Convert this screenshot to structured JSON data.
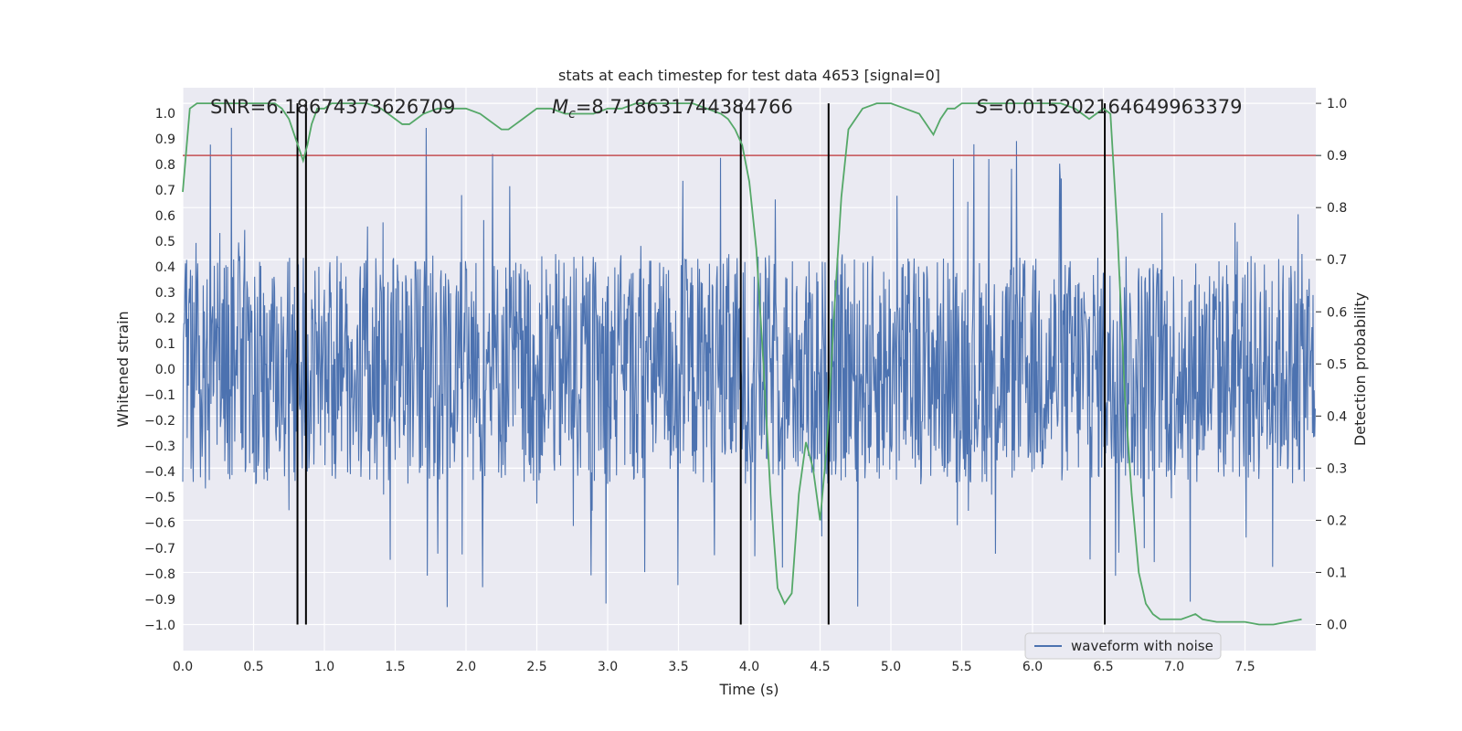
{
  "chart_data": {
    "type": "line",
    "title": "stats at each timestep for test data 4653 [signal=0]",
    "xlabel": "Time (s)",
    "ylabel_left": "Whitened strain",
    "ylabel_right": "Detection probability",
    "xlim": [
      0,
      8
    ],
    "ylim_left": [
      -1.1,
      1.1
    ],
    "ylim_right": [
      -0.05,
      1.03
    ],
    "x_ticks": [
      "0.0",
      "0.5",
      "1.0",
      "1.5",
      "2.0",
      "2.5",
      "3.0",
      "3.5",
      "4.0",
      "4.5",
      "5.0",
      "5.5",
      "6.0",
      "6.5",
      "7.0",
      "7.5"
    ],
    "y_ticks_left": [
      "1.0",
      "0.9",
      "0.8",
      "0.7",
      "0.6",
      "0.5",
      "0.4",
      "0.3",
      "0.2",
      "0.1",
      "0.0",
      "-0.1",
      "-0.2",
      "-0.3",
      "-0.4",
      "-0.5",
      "-0.6",
      "-0.7",
      "-0.8",
      "-0.9",
      "-1.0"
    ],
    "y_ticks_right": [
      "1.0",
      "0.9",
      "0.8",
      "0.7",
      "0.6",
      "0.5",
      "0.4",
      "0.3",
      "0.2",
      "0.1",
      "0.0"
    ],
    "stat_snr": "SNR=6.18674373626709",
    "stat_mc_symbol": "M",
    "stat_mc_sub": "c",
    "stat_mc_value": "=8.718631744384766",
    "stat_s_symbol": "S",
    "stat_s_value": "=0.015202164649963379",
    "legend": "waveform with noise",
    "threshold_probability": 0.9,
    "vertical_lines": [
      0.81,
      0.87,
      3.94,
      4.56,
      6.51
    ],
    "waveform": {
      "name": "waveform with noise",
      "sample_count": 2048,
      "noise_range": [
        -1.0,
        1.0
      ],
      "typical_amplitude": 0.45
    },
    "probability": {
      "x": [
        0.0,
        0.05,
        0.1,
        0.2,
        0.3,
        0.4,
        0.5,
        0.6,
        0.65,
        0.7,
        0.75,
        0.8,
        0.85,
        0.88,
        0.91,
        0.95,
        1.0,
        1.05,
        1.1,
        1.2,
        1.3,
        1.4,
        1.45,
        1.5,
        1.55,
        1.6,
        1.65,
        1.7,
        1.8,
        1.9,
        2.0,
        2.1,
        2.15,
        2.2,
        2.25,
        2.3,
        2.35,
        2.4,
        2.45,
        2.5,
        2.6,
        2.7,
        2.8,
        2.9,
        3.0,
        3.1,
        3.2,
        3.3,
        3.4,
        3.5,
        3.6,
        3.7,
        3.8,
        3.85,
        3.9,
        3.95,
        4.0,
        4.05,
        4.1,
        4.15,
        4.2,
        4.25,
        4.3,
        4.35,
        4.4,
        4.45,
        4.5,
        4.55,
        4.6,
        4.65,
        4.7,
        4.8,
        4.9,
        5.0,
        5.1,
        5.2,
        5.25,
        5.3,
        5.35,
        5.4,
        5.45,
        5.5,
        5.55,
        5.6,
        5.7,
        5.8,
        5.9,
        6.0,
        6.1,
        6.2,
        6.3,
        6.35,
        6.4,
        6.45,
        6.5,
        6.55,
        6.6,
        6.65,
        6.7,
        6.75,
        6.8,
        6.85,
        6.9,
        6.95,
        7.0,
        7.05,
        7.1,
        7.15,
        7.2,
        7.3,
        7.4,
        7.5,
        7.6,
        7.7,
        7.8,
        7.9
      ],
      "y": [
        0.83,
        0.99,
        1.0,
        1.0,
        1.0,
        1.0,
        1.0,
        1.0,
        1.0,
        0.99,
        0.97,
        0.93,
        0.89,
        0.92,
        0.96,
        0.99,
        0.99,
        1.0,
        1.0,
        1.0,
        1.0,
        0.99,
        0.98,
        0.97,
        0.96,
        0.96,
        0.97,
        0.98,
        0.99,
        0.99,
        0.99,
        0.98,
        0.97,
        0.96,
        0.95,
        0.95,
        0.96,
        0.97,
        0.98,
        0.99,
        0.99,
        0.98,
        0.98,
        0.98,
        0.99,
        0.99,
        1.0,
        1.0,
        1.0,
        1.0,
        1.0,
        0.99,
        0.98,
        0.97,
        0.95,
        0.92,
        0.85,
        0.72,
        0.5,
        0.25,
        0.07,
        0.04,
        0.06,
        0.25,
        0.35,
        0.3,
        0.2,
        0.35,
        0.6,
        0.82,
        0.95,
        0.99,
        1.0,
        1.0,
        0.99,
        0.98,
        0.96,
        0.94,
        0.97,
        0.99,
        0.99,
        1.0,
        1.0,
        1.0,
        1.0,
        1.0,
        1.0,
        1.0,
        1.0,
        1.0,
        0.99,
        0.98,
        0.97,
        0.98,
        0.99,
        0.98,
        0.75,
        0.45,
        0.25,
        0.1,
        0.04,
        0.02,
        0.01,
        0.01,
        0.01,
        0.01,
        0.015,
        0.02,
        0.01,
        0.005,
        0.005,
        0.005,
        0.0,
        0.0,
        0.005,
        0.01
      ]
    },
    "colors": {
      "background": "#eaeaf2",
      "grid": "#ffffff",
      "waveform": "#4c72b0",
      "probability": "#55a868",
      "threshold": "#c44e52",
      "vlines": "#000000",
      "text": "#262626"
    }
  }
}
